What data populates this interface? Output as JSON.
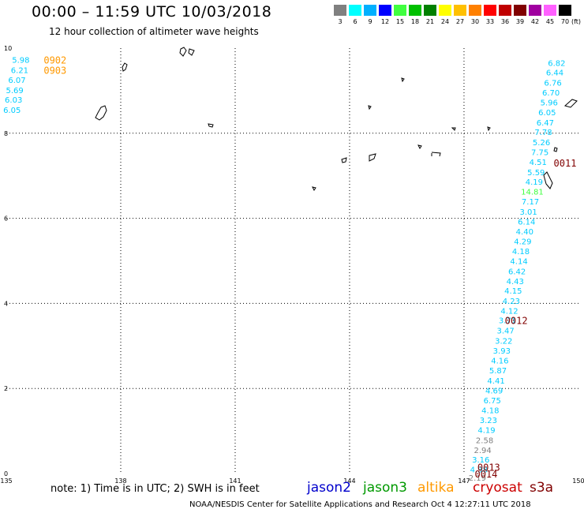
{
  "header": {
    "title": "00:00 – 11:59 UTC 10/03/2018",
    "subtitle": "12 hour collection of altimeter wave heights"
  },
  "colorbar": {
    "unit_label": "(ft)",
    "entries": [
      {
        "label": "3",
        "color": "#808080"
      },
      {
        "label": "6",
        "color": "#00ffff"
      },
      {
        "label": "9",
        "color": "#00b0ff"
      },
      {
        "label": "12",
        "color": "#0000ff"
      },
      {
        "label": "15",
        "color": "#40ff40"
      },
      {
        "label": "18",
        "color": "#00c000"
      },
      {
        "label": "21",
        "color": "#008000"
      },
      {
        "label": "24",
        "color": "#ffff00"
      },
      {
        "label": "27",
        "color": "#ffc000"
      },
      {
        "label": "30",
        "color": "#ff8000"
      },
      {
        "label": "33",
        "color": "#ff0000"
      },
      {
        "label": "36",
        "color": "#c00000"
      },
      {
        "label": "39",
        "color": "#800000"
      },
      {
        "label": "42",
        "color": "#a000a0"
      },
      {
        "label": "45",
        "color": "#ff60ff"
      },
      {
        "label": "70",
        "color": "#000000"
      }
    ]
  },
  "axes": {
    "lon_labels": [
      "135",
      "138",
      "141",
      "144",
      "147",
      "150"
    ],
    "lat_labels": [
      "0",
      "2",
      "4",
      "6",
      "8",
      "10"
    ]
  },
  "note": "note: 1) Time is in UTC; 2) SWH is in feet",
  "satellites": [
    {
      "name": "jason2",
      "color": "#0000cc"
    },
    {
      "name": "jason3",
      "color": "#009900"
    },
    {
      "name": "altika",
      "color": "#ff9900"
    },
    {
      "name": "cryosat",
      "color": "#cc0000"
    },
    {
      "name": "s3a",
      "color": "#800000"
    }
  ],
  "footer": "NOAA/NESDIS Center for Satellite Applications and Research    Oct  4 12:27:11 UTC 2018",
  "pass_labels": [
    {
      "text": "0902",
      "lon": 135.98,
      "lat": 9.73,
      "color": "#ff9900"
    },
    {
      "text": "0903",
      "lon": 135.98,
      "lat": 9.49,
      "color": "#ff9900"
    },
    {
      "text": "0011",
      "lon": 149.35,
      "lat": 7.31,
      "color": "#800000"
    },
    {
      "text": "0012",
      "lon": 148.07,
      "lat": 3.61,
      "color": "#800000"
    },
    {
      "text": "0013",
      "lon": 147.35,
      "lat": 0.16,
      "color": "#800000"
    },
    {
      "text": "0014",
      "lon": 147.28,
      "lat": 0.0,
      "color": "#800000"
    }
  ],
  "wave_heights": [
    {
      "text": "5.98",
      "lon": 135.38,
      "lat": 9.73,
      "color": "#00ccff"
    },
    {
      "text": "6.21",
      "lon": 135.35,
      "lat": 9.49,
      "color": "#00ccff"
    },
    {
      "text": "6.07",
      "lon": 135.28,
      "lat": 9.26,
      "color": "#00ccff"
    },
    {
      "text": "5.69",
      "lon": 135.22,
      "lat": 9.02,
      "color": "#00ccff"
    },
    {
      "text": "6.03",
      "lon": 135.19,
      "lat": 8.79,
      "color": "#00ccff"
    },
    {
      "text": "6.05",
      "lon": 135.15,
      "lat": 8.55,
      "color": "#00ccff"
    },
    {
      "text": "6.82",
      "lon": 149.43,
      "lat": 9.66,
      "color": "#00ccff"
    },
    {
      "text": "6.44",
      "lon": 149.38,
      "lat": 9.43,
      "color": "#00ccff"
    },
    {
      "text": "6.76",
      "lon": 149.33,
      "lat": 9.19,
      "color": "#00ccff"
    },
    {
      "text": "6.70",
      "lon": 149.28,
      "lat": 8.96,
      "color": "#00ccff"
    },
    {
      "text": "5.96",
      "lon": 149.23,
      "lat": 8.73,
      "color": "#00ccff"
    },
    {
      "text": "6.05",
      "lon": 149.18,
      "lat": 8.5,
      "color": "#00ccff"
    },
    {
      "text": "6.47",
      "lon": 149.13,
      "lat": 8.26,
      "color": "#00ccff"
    },
    {
      "text": "7.78",
      "lon": 149.08,
      "lat": 8.03,
      "color": "#00ccff"
    },
    {
      "text": "5.26",
      "lon": 149.03,
      "lat": 7.79,
      "color": "#00ccff"
    },
    {
      "text": "7.75",
      "lon": 148.99,
      "lat": 7.56,
      "color": "#00ccff"
    },
    {
      "text": "4.51",
      "lon": 148.94,
      "lat": 7.33,
      "color": "#00ccff"
    },
    {
      "text": "5.59",
      "lon": 148.89,
      "lat": 7.09,
      "color": "#00ccff"
    },
    {
      "text": "4.19",
      "lon": 148.84,
      "lat": 6.86,
      "color": "#00ccff"
    },
    {
      "text": "14.81",
      "lon": 148.79,
      "lat": 6.63,
      "color": "#40ff40"
    },
    {
      "text": "7.17",
      "lon": 148.74,
      "lat": 6.4,
      "color": "#00ccff"
    },
    {
      "text": "3.01",
      "lon": 148.69,
      "lat": 6.16,
      "color": "#00ccff"
    },
    {
      "text": "6.14",
      "lon": 148.64,
      "lat": 5.93,
      "color": "#00ccff"
    },
    {
      "text": "4.40",
      "lon": 148.59,
      "lat": 5.7,
      "color": "#00ccff"
    },
    {
      "text": "4.29",
      "lon": 148.54,
      "lat": 5.46,
      "color": "#00ccff"
    },
    {
      "text": "4.18",
      "lon": 148.49,
      "lat": 5.23,
      "color": "#00ccff"
    },
    {
      "text": "4.14",
      "lon": 148.44,
      "lat": 5.0,
      "color": "#00ccff"
    },
    {
      "text": "6.42",
      "lon": 148.39,
      "lat": 4.76,
      "color": "#00ccff"
    },
    {
      "text": "4.43",
      "lon": 148.34,
      "lat": 4.53,
      "color": "#00ccff"
    },
    {
      "text": "4.15",
      "lon": 148.29,
      "lat": 4.3,
      "color": "#00ccff"
    },
    {
      "text": "4.23",
      "lon": 148.24,
      "lat": 4.06,
      "color": "#00ccff"
    },
    {
      "text": "4.12",
      "lon": 148.19,
      "lat": 3.83,
      "color": "#00ccff"
    },
    {
      "text": "3.71",
      "lon": 148.14,
      "lat": 3.61,
      "color": "#00ccff"
    },
    {
      "text": "3.47",
      "lon": 148.09,
      "lat": 3.37,
      "color": "#00ccff"
    },
    {
      "text": "3.22",
      "lon": 148.04,
      "lat": 3.13,
      "color": "#00ccff"
    },
    {
      "text": "3.93",
      "lon": 147.99,
      "lat": 2.89,
      "color": "#00ccff"
    },
    {
      "text": "4.16",
      "lon": 147.94,
      "lat": 2.66,
      "color": "#00ccff"
    },
    {
      "text": "5.87",
      "lon": 147.89,
      "lat": 2.43,
      "color": "#00ccff"
    },
    {
      "text": "4.41",
      "lon": 147.84,
      "lat": 2.19,
      "color": "#00ccff"
    },
    {
      "text": "4.69",
      "lon": 147.79,
      "lat": 1.96,
      "color": "#00ccff"
    },
    {
      "text": "6.75",
      "lon": 147.74,
      "lat": 1.73,
      "color": "#00ccff"
    },
    {
      "text": "4.18",
      "lon": 147.69,
      "lat": 1.49,
      "color": "#00ccff"
    },
    {
      "text": "3.23",
      "lon": 147.64,
      "lat": 1.26,
      "color": "#00ccff"
    },
    {
      "text": "4.19",
      "lon": 147.59,
      "lat": 1.03,
      "color": "#00ccff"
    },
    {
      "text": "2.58",
      "lon": 147.54,
      "lat": 0.79,
      "color": "#808080"
    },
    {
      "text": "2.94",
      "lon": 147.49,
      "lat": 0.56,
      "color": "#808080"
    },
    {
      "text": "3.16",
      "lon": 147.44,
      "lat": 0.33,
      "color": "#00ccff"
    },
    {
      "text": "4.38",
      "lon": 147.39,
      "lat": 0.1,
      "color": "#00ccff"
    },
    {
      "text": "2.19",
      "lon": 147.35,
      "lat": -0.09,
      "color": "#808080"
    }
  ]
}
